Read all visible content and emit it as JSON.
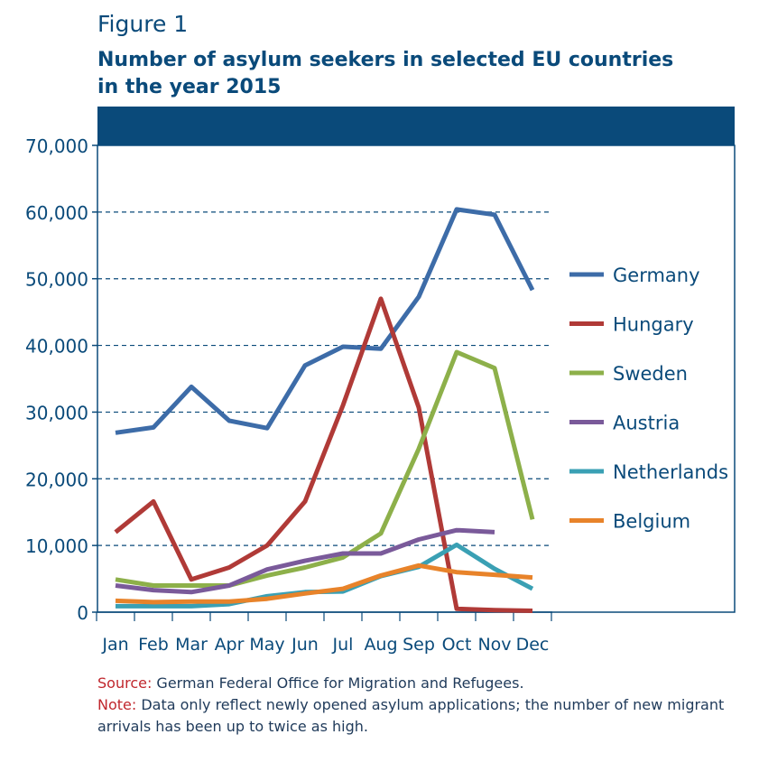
{
  "figure_label": "Figure 1",
  "title_line1": "Number of asylum seekers in selected EU countries",
  "title_line2": "in the year 2015",
  "source_label": "Source:",
  "source_text": " German Federal Office for Migration and Refugees.",
  "note_label": "Note:",
  "note_text": " Data only reflect newly opened asylum applications; the number of new migrant arrivals has been up to twice as high.",
  "colors": {
    "title": "#0a4a7a",
    "header_band": "#0a4a7a",
    "axis": "#0a4a7a",
    "gridline": "#0a4a7a"
  },
  "chart_data": {
    "type": "line",
    "categories": [
      "Jan",
      "Feb",
      "Mar",
      "Apr",
      "May",
      "Jun",
      "Jul",
      "Aug",
      "Sep",
      "Oct",
      "Nov",
      "Dec"
    ],
    "ylim": [
      0,
      70000
    ],
    "yticks": [
      0,
      10000,
      20000,
      30000,
      40000,
      50000,
      60000,
      70000
    ],
    "ytick_labels": [
      "0",
      "10,000",
      "20,000",
      "30,000",
      "40,000",
      "50,000",
      "60,000",
      "70,000"
    ],
    "grid": "horizontal dashed",
    "legend_position": "right",
    "series": [
      {
        "name": "Germany",
        "color": "#3d6ca8",
        "values": [
          26900,
          27700,
          33800,
          28700,
          27600,
          37000,
          39800,
          39500,
          47300,
          60400,
          59600,
          48300
        ]
      },
      {
        "name": "Hungary",
        "color": "#b03a37",
        "values": [
          12000,
          16600,
          4900,
          6700,
          10000,
          16600,
          31000,
          47000,
          30700,
          500,
          300,
          200
        ]
      },
      {
        "name": "Sweden",
        "color": "#8db04a",
        "values": [
          4900,
          4000,
          4000,
          4000,
          5500,
          6700,
          8200,
          11800,
          24500,
          39000,
          36600,
          13900
        ]
      },
      {
        "name": "Austria",
        "color": "#7a5a9a",
        "values": [
          4000,
          3300,
          3000,
          4000,
          6400,
          7700,
          8800,
          8800,
          10900,
          12300,
          12000,
          null
        ]
      },
      {
        "name": "Netherlands",
        "color": "#3aa0b4",
        "values": [
          900,
          900,
          900,
          1200,
          2400,
          3000,
          3100,
          5400,
          6800,
          10100,
          6500,
          3500
        ]
      },
      {
        "name": "Belgium",
        "color": "#e8832a",
        "values": [
          1700,
          1500,
          1600,
          1600,
          2000,
          2800,
          3500,
          5500,
          7000,
          6000,
          5600,
          5200
        ]
      }
    ]
  }
}
